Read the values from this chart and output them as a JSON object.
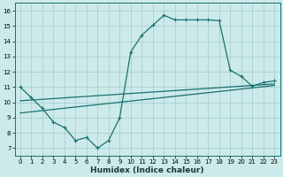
{
  "xlabel": "Humidex (Indice chaleur)",
  "bg_color": "#cceaea",
  "line_color": "#1a7070",
  "grid_color": "#a0cccc",
  "xlim": [
    -0.5,
    23.5
  ],
  "ylim": [
    6.5,
    16.5
  ],
  "xticks": [
    0,
    1,
    2,
    3,
    4,
    5,
    6,
    7,
    8,
    9,
    10,
    11,
    12,
    13,
    14,
    15,
    16,
    17,
    18,
    19,
    20,
    21,
    22,
    23
  ],
  "yticks": [
    7,
    8,
    9,
    10,
    11,
    12,
    13,
    14,
    15,
    16
  ],
  "line1_x": [
    0,
    1,
    2,
    3,
    4,
    5,
    6,
    7,
    8,
    9,
    10,
    11,
    12,
    13,
    14,
    15,
    16,
    17,
    18,
    19,
    20,
    21,
    22,
    23
  ],
  "line1_y": [
    11.0,
    10.3,
    9.6,
    8.7,
    8.35,
    7.5,
    7.7,
    7.0,
    7.5,
    9.0,
    13.3,
    14.4,
    15.05,
    15.7,
    15.4,
    15.4,
    15.4,
    15.4,
    15.35,
    12.1,
    11.7,
    11.05,
    11.3,
    11.4
  ],
  "line2_x": [
    0,
    23
  ],
  "line2_y": [
    10.1,
    11.2
  ],
  "line3_x": [
    0,
    23
  ],
  "line3_y": [
    9.3,
    11.1
  ],
  "xlabel_fontsize": 6.5,
  "tick_fontsize": 5.0
}
